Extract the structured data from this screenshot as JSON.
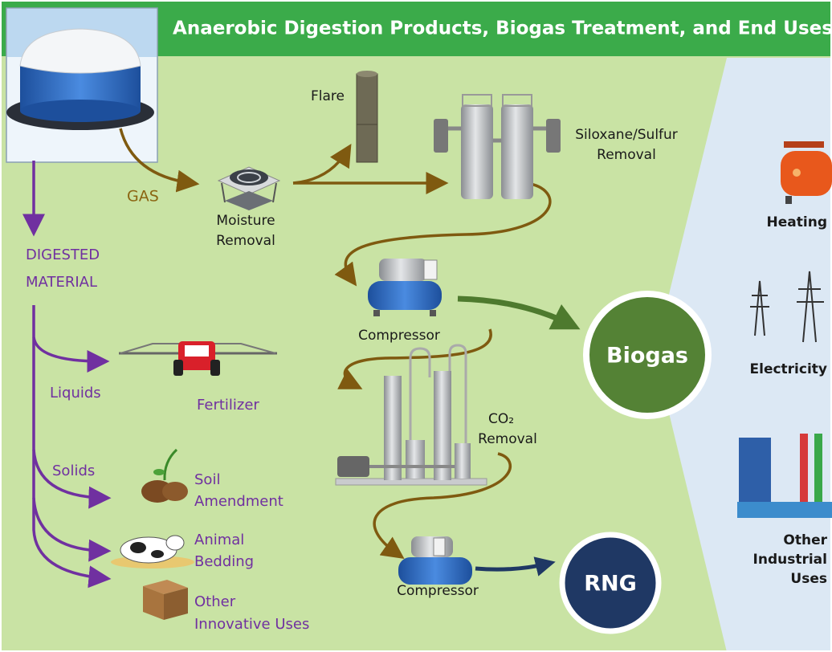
{
  "header": {
    "title": "Anaerobic Digestion Products, Biogas Treatment, and End Uses"
  },
  "digester": {
    "gas_label": "GAS",
    "digested_label": [
      "DIGESTED",
      "MATERIAL"
    ]
  },
  "treatment": [
    {
      "label": [
        "Moisture",
        "Removal"
      ]
    },
    {
      "label": [
        "Flare"
      ]
    },
    {
      "label": [
        "Siloxane/Sulfur",
        "Removal"
      ]
    },
    {
      "label": [
        "Compressor"
      ]
    },
    {
      "label": [
        "CO₂",
        "Removal"
      ]
    },
    {
      "label": [
        "Compressor"
      ]
    }
  ],
  "products": [
    "Biogas",
    "RNG"
  ],
  "digested_uses": {
    "streams": [
      "Liquids",
      "Solids"
    ],
    "uses": [
      [
        "Fertilizer"
      ],
      [
        "Soil",
        "Amendment"
      ],
      [
        "Animal",
        "Bedding"
      ],
      [
        "Other",
        "Innovative Uses"
      ]
    ]
  },
  "end_uses": [
    [
      "Heating"
    ],
    [
      "Electricity"
    ],
    [
      "Other",
      "Industrial",
      "Uses"
    ]
  ]
}
